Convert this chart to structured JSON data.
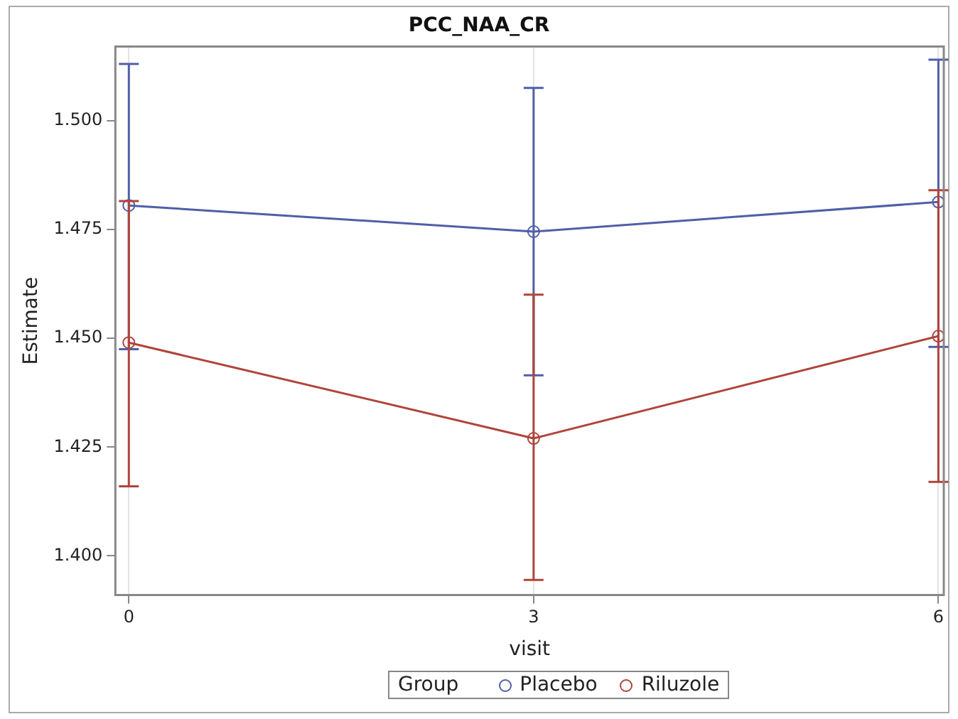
{
  "chart_data": {
    "type": "line",
    "title": "PCC_NAA_CR",
    "xlabel": "visit",
    "ylabel": "Estimate",
    "legend_title": "Group",
    "x": [
      0,
      3,
      6
    ],
    "series": [
      {
        "name": "Placebo",
        "color": "#4f5fa8",
        "values": [
          1.4805,
          1.4745,
          1.4813
        ],
        "errors": [
          [
            1.4475,
            1.513
          ],
          [
            1.4415,
            1.5075
          ],
          [
            1.448,
            1.514
          ]
        ]
      },
      {
        "name": "Riluzole",
        "color": "#b0443a",
        "values": [
          1.449,
          1.427,
          1.4505
        ],
        "errors": [
          [
            1.416,
            1.4815
          ],
          [
            1.3945,
            1.46
          ],
          [
            1.417,
            1.484
          ]
        ]
      }
    ],
    "xlim": [
      -0.1,
      6.04
    ],
    "xticks": [
      0,
      3,
      6
    ],
    "ylim": [
      1.391,
      1.517
    ],
    "yticks": [
      {
        "value": 1.4,
        "label": "1.400"
      },
      1.425,
      {
        "value": 1.45,
        "label": "1.450"
      },
      1.475,
      {
        "value": 1.5,
        "label": "1.500"
      }
    ],
    "grid": "x",
    "legend": "bottom",
    "marker": "circle",
    "line_style": "solid"
  }
}
